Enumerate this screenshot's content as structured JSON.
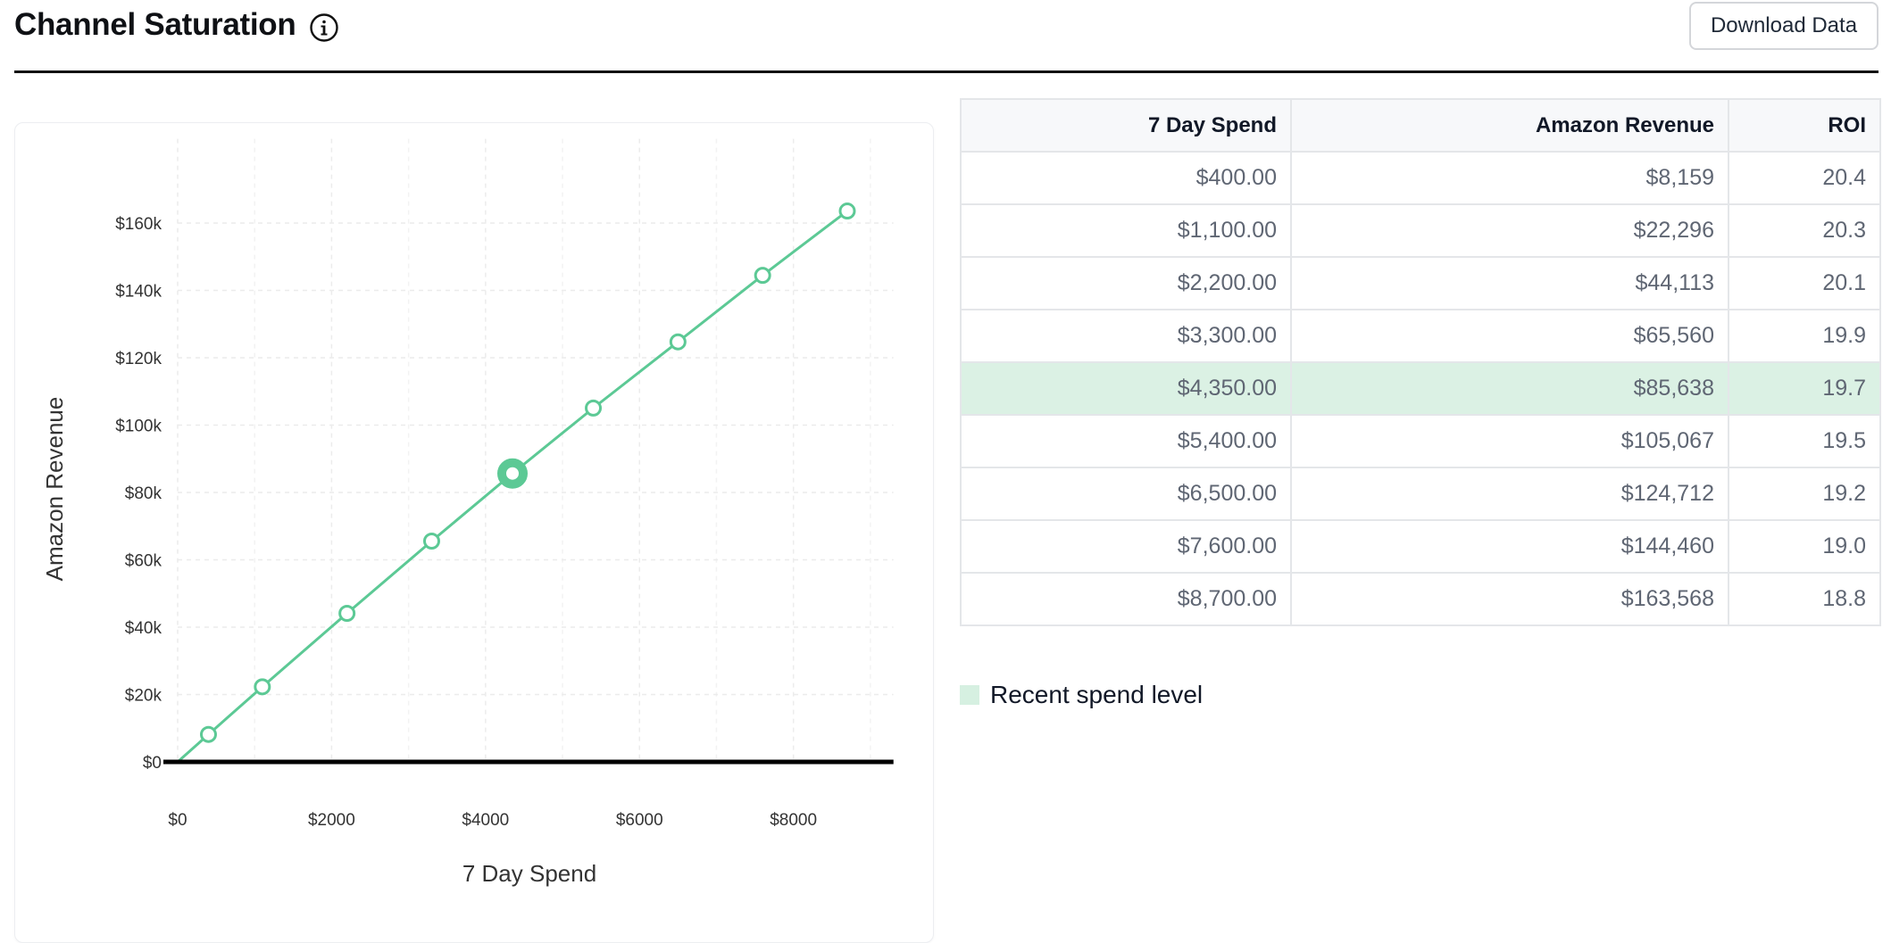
{
  "header": {
    "title": "Channel Saturation",
    "info_icon": "info-icon",
    "download_label": "Download Data"
  },
  "chart_data": {
    "type": "line",
    "xlabel": "7 Day Spend",
    "ylabel": "Amazon Revenue",
    "xlim": [
      0,
      9300
    ],
    "ylim": [
      0,
      185000
    ],
    "x_ticks": [
      0,
      2000,
      4000,
      6000,
      8000
    ],
    "x_tick_labels": [
      "$0",
      "$2000",
      "$4000",
      "$6000",
      "$8000"
    ],
    "y_ticks": [
      0,
      20000,
      40000,
      60000,
      80000,
      100000,
      120000,
      140000,
      160000
    ],
    "y_tick_labels": [
      "$0",
      "$20k",
      "$40k",
      "$60k",
      "$80k",
      "$100k",
      "$120k",
      "$140k",
      "$160k"
    ],
    "grid": true,
    "line_color": "#5cc995",
    "series": [
      {
        "x": [
          0,
          400,
          1100,
          2200,
          3300,
          4350,
          5400,
          6500,
          7600,
          8700
        ],
        "y": [
          0,
          8159,
          22296,
          44113,
          65560,
          85638,
          105067,
          124712,
          144460,
          163568
        ]
      }
    ],
    "highlight_x": 4350
  },
  "table": {
    "headers": [
      "7 Day Spend",
      "Amazon Revenue",
      "ROI"
    ],
    "rows": [
      [
        "$400.00",
        "$8,159",
        "20.4"
      ],
      [
        "$1,100.00",
        "$22,296",
        "20.3"
      ],
      [
        "$2,200.00",
        "$44,113",
        "20.1"
      ],
      [
        "$3,300.00",
        "$65,560",
        "19.9"
      ],
      [
        "$4,350.00",
        "$85,638",
        "19.7"
      ],
      [
        "$5,400.00",
        "$105,067",
        "19.5"
      ],
      [
        "$6,500.00",
        "$124,712",
        "19.2"
      ],
      [
        "$7,600.00",
        "$144,460",
        "19.0"
      ],
      [
        "$8,700.00",
        "$163,568",
        "18.8"
      ]
    ],
    "highlight_row": 4,
    "highlight_color": "#dbf1e4"
  },
  "legend": {
    "label": "Recent spend level",
    "swatch_color": "#d6f0e1"
  }
}
